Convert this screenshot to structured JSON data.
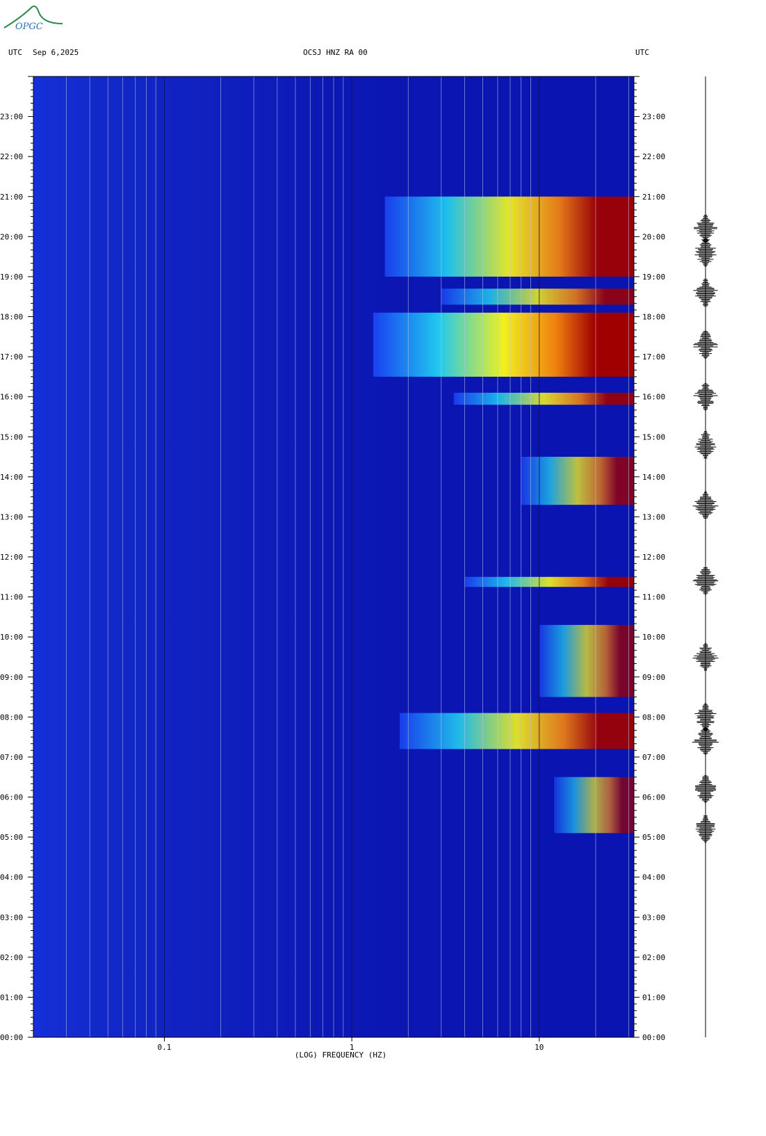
{
  "header": {
    "left_timezone": "UTC",
    "date": "Sep 6,2025",
    "station": "OCSJ HNZ RA 00",
    "right_timezone": "UTC"
  },
  "logo": {
    "text": "OPGC",
    "color": "#2a8a4a"
  },
  "chart_data": {
    "type": "heatmap",
    "title": "OCSJ HNZ RA 00",
    "xlabel": "(LOG) FREQUENCY (HZ)",
    "ylabel": "UTC",
    "x_scale": "log",
    "xlim_hz": [
      0.02,
      32
    ],
    "x_tick_labels": [
      {
        "value": 0.1,
        "label": "0.1"
      },
      {
        "value": 1,
        "label": "1"
      },
      {
        "value": 10,
        "label": "10"
      }
    ],
    "y_range_hours": [
      0,
      24
    ],
    "y_tick_labels": [
      "00:00",
      "01:00",
      "02:00",
      "03:00",
      "04:00",
      "05:00",
      "06:00",
      "07:00",
      "08:00",
      "09:00",
      "10:00",
      "11:00",
      "12:00",
      "13:00",
      "14:00",
      "15:00",
      "16:00",
      "17:00",
      "18:00",
      "19:00",
      "20:00",
      "21:00",
      "22:00",
      "23:00"
    ],
    "colormap": [
      "#0a10b8",
      "#1a40f0",
      "#20c8f0",
      "#f0f020",
      "#f08010",
      "#a00000"
    ],
    "activity_bands": [
      {
        "start_h": 19.0,
        "end_h": 21.0,
        "fmin_hz": 1.5,
        "level": 0.9
      },
      {
        "start_h": 18.3,
        "end_h": 18.7,
        "fmin_hz": 3.0,
        "level": 0.75
      },
      {
        "start_h": 16.5,
        "end_h": 18.1,
        "fmin_hz": 1.3,
        "level": 1.0
      },
      {
        "start_h": 15.8,
        "end_h": 16.1,
        "fmin_hz": 3.5,
        "level": 0.8
      },
      {
        "start_h": 13.3,
        "end_h": 14.5,
        "fmin_hz": 8.0,
        "level": 0.6
      },
      {
        "start_h": 11.25,
        "end_h": 11.5,
        "fmin_hz": 4.0,
        "level": 0.85
      },
      {
        "start_h": 8.5,
        "end_h": 10.3,
        "fmin_hz": 10.0,
        "level": 0.55
      },
      {
        "start_h": 7.2,
        "end_h": 8.1,
        "fmin_hz": 1.8,
        "level": 0.85
      },
      {
        "start_h": 5.1,
        "end_h": 6.5,
        "fmin_hz": 12.0,
        "level": 0.45
      }
    ],
    "seismogram_events_h": [
      20.2,
      19.6,
      18.6,
      17.3,
      16.0,
      14.8,
      13.3,
      11.4,
      9.5,
      8.0,
      7.4,
      6.2,
      5.2
    ]
  }
}
